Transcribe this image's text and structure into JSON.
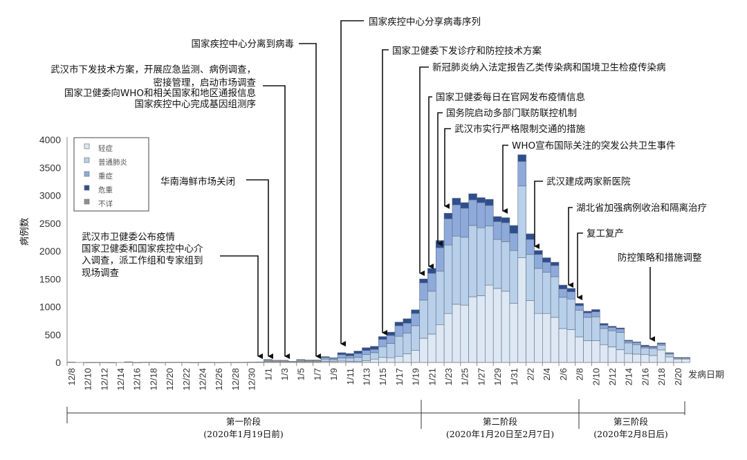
{
  "chart_data": {
    "type": "bar",
    "stacked": true,
    "xlabel": "发病日期",
    "ylabel": "病例数",
    "ylim": [
      0,
      4000
    ],
    "yticks": [
      0,
      500,
      1000,
      1500,
      2000,
      2500,
      3000,
      3500,
      4000
    ],
    "grid": false,
    "legend_position": "top-left",
    "categories": [
      "12/8",
      "12/9",
      "12/10",
      "12/11",
      "12/12",
      "12/13",
      "12/14",
      "12/15",
      "12/16",
      "12/17",
      "12/18",
      "12/19",
      "12/20",
      "12/21",
      "12/22",
      "12/23",
      "12/24",
      "12/25",
      "12/26",
      "12/27",
      "12/28",
      "12/29",
      "12/30",
      "12/31",
      "1/1",
      "1/2",
      "1/3",
      "1/4",
      "1/5",
      "1/6",
      "1/7",
      "1/8",
      "1/9",
      "1/10",
      "1/11",
      "1/12",
      "1/13",
      "1/14",
      "1/15",
      "1/16",
      "1/17",
      "1/18",
      "1/19",
      "1/20",
      "1/21",
      "1/22",
      "1/23",
      "1/24",
      "1/25",
      "1/26",
      "1/27",
      "1/28",
      "1/29",
      "1/30",
      "1/31",
      "2/1",
      "2/2",
      "2/3",
      "2/4",
      "2/5",
      "2/6",
      "2/7",
      "2/8",
      "2/9",
      "2/10",
      "2/11",
      "2/12",
      "2/13",
      "2/14",
      "2/15",
      "2/16",
      "2/17",
      "2/18",
      "2/19",
      "2/20",
      "2/21"
    ],
    "tick_labels": [
      "12/8",
      "12/10",
      "12/12",
      "12/14",
      "12/16",
      "12/18",
      "12/20",
      "12/22",
      "12/24",
      "12/26",
      "12/28",
      "12/30",
      "1/1",
      "1/3",
      "1/5",
      "1/7",
      "1/9",
      "1/11",
      "1/13",
      "1/15",
      "1/17",
      "1/19",
      "1/21",
      "1/23",
      "1/25",
      "1/27",
      "1/29",
      "1/31",
      "2/2",
      "2/4",
      "2/6",
      "2/8",
      "2/10",
      "2/12",
      "2/14",
      "2/16",
      "2/18",
      "2/20"
    ],
    "series": [
      {
        "name": "轻症",
        "color": "#dde8f4",
        "values": [
          0,
          0,
          0,
          0,
          0,
          0,
          0,
          0,
          0,
          0,
          0,
          0,
          0,
          0,
          0,
          0,
          0,
          0,
          0,
          0,
          0,
          0,
          0,
          0,
          0,
          0,
          0,
          0,
          0,
          0,
          0,
          20,
          15,
          25,
          20,
          20,
          30,
          60,
          90,
          85,
          110,
          155,
          215,
          435,
          510,
          680,
          880,
          1045,
          1030,
          1180,
          1200,
          1390,
          1330,
          1280,
          1060,
          1880,
          1110,
          880,
          880,
          810,
          610,
          590,
          460,
          390,
          390,
          320,
          280,
          230,
          160,
          150,
          140,
          125,
          225,
          100,
          60,
          60
        ]
      },
      {
        "name": "普通肺炎",
        "color": "#b8d0ea",
        "values": [
          0,
          0,
          0,
          0,
          0,
          0,
          0,
          0,
          0,
          0,
          0,
          0,
          0,
          0,
          0,
          0,
          0,
          0,
          0,
          0,
          0,
          0,
          0,
          0,
          0,
          0,
          0,
          0,
          0,
          0,
          0,
          40,
          35,
          55,
          60,
          70,
          110,
          115,
          195,
          255,
          360,
          370,
          445,
          685,
          770,
          960,
          1230,
          1225,
          1220,
          1280,
          1220,
          1060,
          880,
          890,
          950,
          1290,
          830,
          810,
          740,
          730,
          560,
          550,
          480,
          420,
          430,
          290,
          290,
          310,
          190,
          170,
          120,
          125,
          85,
          50,
          20,
          20
        ]
      },
      {
        "name": "重症",
        "color": "#8eaadb",
        "values": [
          0,
          0,
          0,
          0,
          0,
          0,
          0,
          0,
          0,
          0,
          0,
          0,
          0,
          0,
          0,
          0,
          0,
          0,
          0,
          0,
          0,
          0,
          0,
          0,
          0,
          0,
          0,
          0,
          0,
          0,
          0,
          30,
          25,
          60,
          40,
          70,
          75,
          60,
          130,
          145,
          190,
          180,
          220,
          310,
          320,
          420,
          470,
          560,
          520,
          460,
          450,
          370,
          320,
          340,
          310,
          440,
          270,
          250,
          180,
          200,
          150,
          130,
          80,
          80,
          90,
          60,
          60,
          60,
          35,
          40,
          25,
          25,
          25,
          15,
          5,
          5
        ]
      },
      {
        "name": "危重",
        "color": "#2f4e8e",
        "values": [
          0,
          0,
          0,
          0,
          0,
          0,
          0,
          0,
          0,
          0,
          0,
          0,
          0,
          0,
          0,
          0,
          0,
          0,
          0,
          0,
          0,
          0,
          0,
          0,
          0,
          0,
          0,
          0,
          0,
          0,
          0,
          15,
          10,
          35,
          40,
          45,
          50,
          55,
          50,
          60,
          65,
          80,
          65,
          70,
          90,
          130,
          100,
          120,
          100,
          110,
          90,
          110,
          90,
          90,
          140,
          120,
          100,
          70,
          80,
          60,
          70,
          60,
          40,
          30,
          40,
          30,
          20,
          20,
          15,
          10,
          25,
          15,
          15,
          10,
          5,
          5
        ]
      },
      {
        "name": "不详",
        "color": "#8a8f96",
        "values": [
          8,
          0,
          4,
          4,
          4,
          2,
          0,
          12,
          2,
          6,
          6,
          3,
          6,
          6,
          5,
          2,
          5,
          5,
          3,
          5,
          5,
          5,
          8,
          10,
          55,
          40,
          40,
          20,
          55,
          45,
          45,
          0,
          0,
          0,
          0,
          0,
          0,
          0,
          0,
          0,
          0,
          0,
          0,
          0,
          0,
          0,
          0,
          0,
          0,
          0,
          0,
          0,
          0,
          0,
          0,
          0,
          0,
          0,
          0,
          0,
          0,
          0,
          0,
          0,
          0,
          0,
          0,
          0,
          0,
          0,
          0,
          0,
          0,
          0,
          0,
          0
        ]
      }
    ],
    "annotations": [
      {
        "lines": [
          "武汉市卫健委公布疫情",
          "国家卫健委和国家疾控中心介",
          "入调查，派工作组和专家组到",
          "现场调查"
        ]
      },
      {
        "lines": [
          "华南海鲜市场关闭"
        ]
      },
      {
        "lines": [
          "武汉市下发技术方案，开展应急监测、病例调查，",
          "密接管理，启动市场调查",
          "国家卫健委向WHO和相关国家和地区通报信息",
          "国家疾控中心完成基因组测序"
        ]
      },
      {
        "lines": [
          "国家疾控中心分离到病毒"
        ]
      },
      {
        "lines": [
          "国家疾控中心分享病毒序列"
        ]
      },
      {
        "lines": [
          "国家卫健委下发诊疗和防控技术方案"
        ]
      },
      {
        "lines": [
          "新冠肺炎纳入法定报告乙类传染病和国境卫生检疫传染病"
        ]
      },
      {
        "lines": [
          "国家卫健委每日在官网发布疫情信息"
        ]
      },
      {
        "lines": [
          "国务院启动多部门联防联控机制"
        ]
      },
      {
        "lines": [
          "武汉市实行严格限制交通的措施"
        ]
      },
      {
        "lines": [
          "WHO宣布国际关注的突发公共卫生事件"
        ]
      },
      {
        "lines": [
          "武汉建成两家新医院"
        ]
      },
      {
        "lines": [
          "湖北省加强病例收治和隔离治疗"
        ]
      },
      {
        "lines": [
          "复工复产"
        ]
      },
      {
        "lines": [
          "防控策略和措施调整"
        ]
      }
    ],
    "phases": [
      {
        "name": "第一阶段",
        "range": "(2020年1月19日前)"
      },
      {
        "name": "第二阶段",
        "range": "(2020年1月20日至2月7日)"
      },
      {
        "name": "第三阶段",
        "range": "(2020年2月8日后)"
      }
    ]
  }
}
